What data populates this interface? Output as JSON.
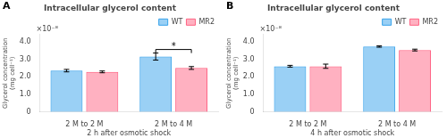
{
  "chart_data": [
    {
      "type": "bar",
      "title": "Intracellular glycerol content",
      "xlabel": "2 h after osmotic shock",
      "ylabel": "Glycerol concentration\n(mg cell⁻¹)",
      "categories": [
        "2 M to 2 M",
        "2 M to 4 M"
      ],
      "series": [
        {
          "name": "WT",
          "values": [
            2.35e-08,
            3.15e-08
          ],
          "errors": [
            7e-10,
            2e-09
          ]
        },
        {
          "name": "MR2",
          "values": [
            2.28e-08,
            2.5e-08
          ],
          "errors": [
            5e-10,
            8e-10
          ]
        }
      ],
      "ylim": [
        0,
        4.4e-08
      ],
      "yticks": [
        0,
        {
          "value": 1e-08,
          "label": "1.0"
        },
        {
          "value": 2e-08,
          "label": "2.0"
        },
        {
          "value": 3e-08,
          "label": "3.0"
        },
        {
          "value": 4e-08,
          "label": "4.0"
        }
      ],
      "grid": false,
      "legend": "upper right",
      "annotations": [
        {
          "type": "panel_label",
          "text": "A"
        },
        {
          "type": "axis_multiplier",
          "text": "×10⁻⁸"
        },
        {
          "type": "significance",
          "text": "*",
          "category": "2 M to 4 M",
          "y": 3.55e-08
        }
      ]
    },
    {
      "type": "bar",
      "title": "Intracellular glycerol content",
      "xlabel": "4 h after osmotic shock",
      "ylabel": "Glycerol concentration\n(mg cell⁻¹)",
      "categories": [
        "2 M to 2 M",
        "2 M to 4 M"
      ],
      "series": [
        {
          "name": "WT",
          "values": [
            2.6e-08,
            3.72e-08
          ],
          "errors": [
            5e-10,
            4e-10
          ]
        },
        {
          "name": "MR2",
          "values": [
            2.6e-08,
            3.52e-08
          ],
          "errors": [
            1.2e-09,
            5e-10
          ]
        }
      ],
      "ylim": [
        0,
        4.4e-08
      ],
      "yticks": [
        0,
        {
          "value": 1e-08,
          "label": "1.0"
        },
        {
          "value": 2e-08,
          "label": "2.0"
        },
        {
          "value": 3e-08,
          "label": "3.0"
        },
        {
          "value": 4e-08,
          "label": "4.0"
        }
      ],
      "grid": false,
      "legend": "upper right",
      "annotations": [
        {
          "type": "panel_label",
          "text": "B"
        },
        {
          "type": "axis_multiplier",
          "text": "×10⁻⁸"
        }
      ]
    }
  ]
}
